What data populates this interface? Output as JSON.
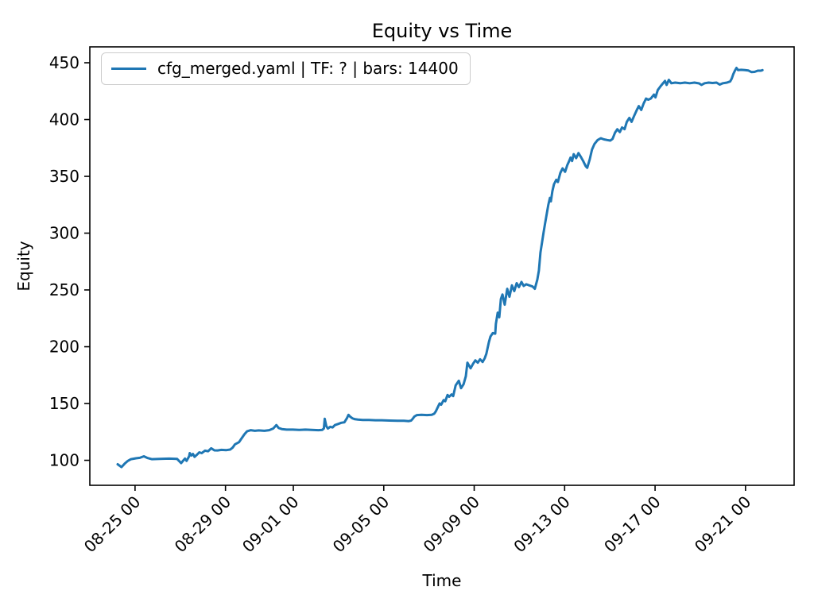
{
  "figure": {
    "background": "#ffffff"
  },
  "chart_data": {
    "type": "line",
    "title": "Equity vs Time",
    "xlabel": "Time",
    "ylabel": "Equity",
    "grid": false,
    "legend_position": "upper left",
    "legend_border_color": "#cccccc",
    "axis_color": "#000000",
    "x_unit": "days since 08-25 00:00",
    "xlim_days": [
      -2.0,
      29.15
    ],
    "ylim": [
      78,
      464
    ],
    "y_ticks": [
      100,
      150,
      200,
      250,
      300,
      350,
      400,
      450
    ],
    "x_ticks": [
      {
        "day": 0,
        "label": "08-25 00"
      },
      {
        "day": 4,
        "label": "08-29 00"
      },
      {
        "day": 7,
        "label": "09-01 00"
      },
      {
        "day": 11,
        "label": "09-05 00"
      },
      {
        "day": 15,
        "label": "09-09 00"
      },
      {
        "day": 19,
        "label": "09-13 00"
      },
      {
        "day": 23,
        "label": "09-17 00"
      },
      {
        "day": 27,
        "label": "09-21 00"
      }
    ],
    "series": [
      {
        "name": "cfg_merged.yaml | TF: ? | bars: 14400",
        "color": "#1f77b4",
        "line_width": 3,
        "x_days": [
          -0.77,
          -0.6,
          -0.46,
          -0.32,
          -0.18,
          0.04,
          0.21,
          0.39,
          0.56,
          0.74,
          1.09,
          1.51,
          1.86,
          2.04,
          2.14,
          2.21,
          2.28,
          2.39,
          2.42,
          2.49,
          2.56,
          2.63,
          2.74,
          2.84,
          2.95,
          3.09,
          3.23,
          3.37,
          3.51,
          3.65,
          3.82,
          4.04,
          4.21,
          4.32,
          4.42,
          4.6,
          4.7,
          4.84,
          4.95,
          5.12,
          5.3,
          5.47,
          5.72,
          5.93,
          6.11,
          6.25,
          6.35,
          6.49,
          6.7,
          6.98,
          7.26,
          7.54,
          7.82,
          8.11,
          8.28,
          8.35,
          8.39,
          8.46,
          8.53,
          8.63,
          8.74,
          8.84,
          8.98,
          9.12,
          9.26,
          9.37,
          9.44,
          9.51,
          9.61,
          9.72,
          9.86,
          10.07,
          10.35,
          10.63,
          10.91,
          11.26,
          11.61,
          11.89,
          12.11,
          12.21,
          12.28,
          12.35,
          12.46,
          12.67,
          12.91,
          13.12,
          13.23,
          13.3,
          13.37,
          13.47,
          13.54,
          13.65,
          13.72,
          13.82,
          13.89,
          14.0,
          14.07,
          14.18,
          14.32,
          14.42,
          14.53,
          14.63,
          14.7,
          14.84,
          14.95,
          15.05,
          15.16,
          15.26,
          15.37,
          15.47,
          15.54,
          15.65,
          15.72,
          15.82,
          15.93,
          15.96,
          16.04,
          16.11,
          16.18,
          16.25,
          16.35,
          16.46,
          16.56,
          16.67,
          16.77,
          16.88,
          16.98,
          17.09,
          17.19,
          17.3,
          17.44,
          17.58,
          17.68,
          17.79,
          17.86,
          17.93,
          18.0,
          18.07,
          18.14,
          18.21,
          18.28,
          18.35,
          18.39,
          18.46,
          18.53,
          18.63,
          18.7,
          18.81,
          18.91,
          19.02,
          19.12,
          19.19,
          19.26,
          19.33,
          19.4,
          19.51,
          19.61,
          19.72,
          19.82,
          19.93,
          20.0,
          20.11,
          20.21,
          20.32,
          20.46,
          20.6,
          20.74,
          20.88,
          21.02,
          21.12,
          21.23,
          21.33,
          21.44,
          21.54,
          21.65,
          21.75,
          21.86,
          21.96,
          22.07,
          22.18,
          22.28,
          22.39,
          22.49,
          22.6,
          22.7,
          22.81,
          22.95,
          23.02,
          23.12,
          23.23,
          23.33,
          23.44,
          23.51,
          23.61,
          23.72,
          23.89,
          24.11,
          24.32,
          24.53,
          24.74,
          24.95,
          25.05,
          25.19,
          25.37,
          25.54,
          25.72,
          25.86,
          26.0,
          26.18,
          26.32,
          26.39,
          26.46,
          26.53,
          26.6,
          26.67,
          26.81,
          26.98,
          27.12,
          27.26,
          27.4,
          27.54,
          27.68,
          27.75
        ],
        "equity": [
          96.5,
          94,
          97,
          99.5,
          101,
          101.8,
          102.2,
          103.5,
          102,
          101,
          101.2,
          101.5,
          101.2,
          97.5,
          100,
          101.5,
          99.5,
          103.5,
          106.3,
          104.2,
          105.6,
          103,
          105,
          107,
          106.3,
          108.5,
          108,
          110.6,
          108.8,
          108.7,
          109.2,
          109,
          109.5,
          111.3,
          114.1,
          116,
          119,
          123,
          125.5,
          126.5,
          126,
          126.3,
          126,
          126.5,
          128,
          131,
          128.5,
          127.5,
          127,
          127,
          126.8,
          127,
          126.8,
          126.5,
          126.8,
          128,
          136.5,
          130,
          128,
          129.5,
          129,
          131,
          132,
          133,
          133.5,
          137,
          140,
          138.5,
          137,
          136.2,
          135.8,
          135.5,
          135.5,
          135.3,
          135.3,
          135,
          134.8,
          134.8,
          134.5,
          135,
          136.5,
          138.5,
          139.8,
          140,
          139.8,
          140,
          141,
          143,
          146,
          150,
          149,
          153,
          152,
          157.5,
          156,
          158,
          156.5,
          166,
          170,
          163.5,
          167,
          174,
          186,
          181,
          185,
          188,
          186,
          189,
          186.5,
          190,
          194,
          204,
          209,
          212,
          211.5,
          220,
          230,
          226,
          242,
          246,
          237,
          251,
          244,
          254,
          249,
          256,
          252.5,
          257,
          253.5,
          255,
          254,
          253,
          251,
          259,
          267,
          283,
          292,
          301,
          309,
          317,
          325,
          331,
          328,
          337,
          343,
          347,
          345,
          353,
          357,
          354,
          360,
          363,
          366.5,
          363.5,
          369.5,
          366,
          370.5,
          367,
          363.5,
          359,
          357.5,
          365,
          373.5,
          378.5,
          382,
          383.5,
          382.5,
          382,
          381.5,
          383,
          388.5,
          391.5,
          389,
          393,
          391.5,
          398,
          401.5,
          398,
          403,
          408,
          411.8,
          408.5,
          414,
          418.5,
          417.5,
          418.5,
          422,
          419.5,
          426,
          429,
          431.5,
          434,
          430.5,
          435,
          432,
          432.5,
          432,
          432.5,
          432,
          432.5,
          431.8,
          430.5,
          432,
          432.5,
          432.2,
          432.5,
          430.8,
          432,
          432.5,
          433.5,
          436,
          440,
          443,
          445.5,
          443.5,
          443.8,
          443.5,
          443.2,
          441.8,
          442,
          443,
          443,
          443.5
        ]
      }
    ]
  }
}
